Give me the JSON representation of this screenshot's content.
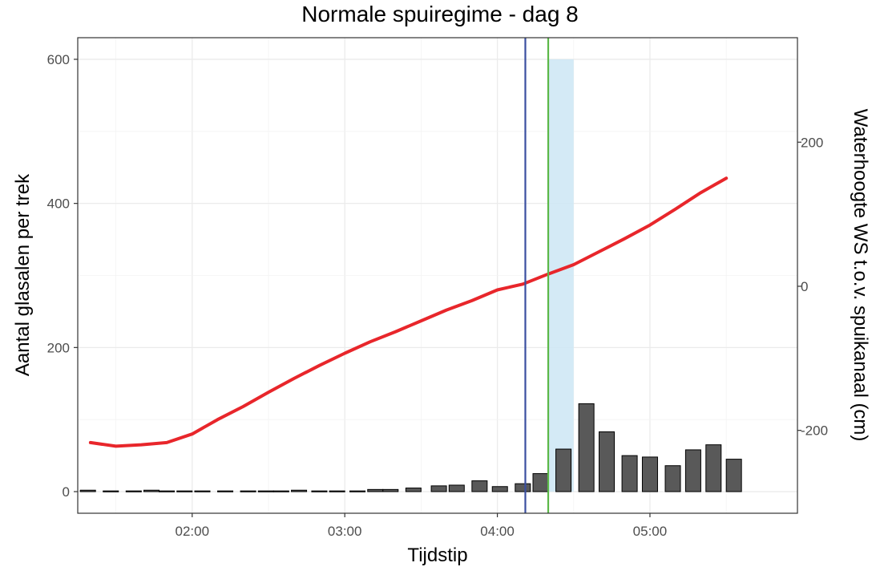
{
  "chart_data": {
    "type": "bar",
    "title": "Normale spuiregime - dag 8",
    "xlabel": "Tijdstip",
    "ylabel": "Aantal glasalen per trek",
    "y2label": "Waterhoogte WS t.o.v. spuikanaal (cm)",
    "xlim": [
      "01:15",
      "05:58"
    ],
    "ylim": [
      -30,
      630
    ],
    "y2lim": [
      -315,
      345
    ],
    "x_ticks": [
      "02:00",
      "03:00",
      "04:00",
      "05:00"
    ],
    "y_ticks": [
      0,
      200,
      400,
      600
    ],
    "y2_ticks": [
      -200,
      0,
      200
    ],
    "grid": true,
    "legend": "none",
    "colors": {
      "bars": "#595959",
      "waterline": "#e8262b",
      "blue_line": "#3a4fa0",
      "green_line": "#5cb848",
      "shade": "#cce6f4"
    },
    "bars": [
      {
        "time": "01:19",
        "value": 2
      },
      {
        "time": "01:28",
        "value": 1
      },
      {
        "time": "01:37",
        "value": 1
      },
      {
        "time": "01:44",
        "value": 2
      },
      {
        "time": "01:50",
        "value": 1
      },
      {
        "time": "01:57",
        "value": 1
      },
      {
        "time": "02:04",
        "value": 1
      },
      {
        "time": "02:13",
        "value": 1
      },
      {
        "time": "02:22",
        "value": 1
      },
      {
        "time": "02:29",
        "value": 1
      },
      {
        "time": "02:35",
        "value": 1
      },
      {
        "time": "02:42",
        "value": 2
      },
      {
        "time": "02:50",
        "value": 1
      },
      {
        "time": "02:57",
        "value": 1
      },
      {
        "time": "03:05",
        "value": 1
      },
      {
        "time": "03:12",
        "value": 3
      },
      {
        "time": "03:18",
        "value": 3
      },
      {
        "time": "03:27",
        "value": 5
      },
      {
        "time": "03:37",
        "value": 8
      },
      {
        "time": "03:44",
        "value": 9
      },
      {
        "time": "03:53",
        "value": 15
      },
      {
        "time": "04:01",
        "value": 7
      },
      {
        "time": "04:10",
        "value": 11
      },
      {
        "time": "04:17",
        "value": 25
      },
      {
        "time": "04:26",
        "value": 59
      },
      {
        "time": "04:35",
        "value": 122
      },
      {
        "time": "04:43",
        "value": 83
      },
      {
        "time": "04:52",
        "value": 50
      },
      {
        "time": "05:00",
        "value": 48
      },
      {
        "time": "05:09",
        "value": 36
      },
      {
        "time": "05:17",
        "value": 58
      },
      {
        "time": "05:25",
        "value": 65
      },
      {
        "time": "05:33",
        "value": 45
      }
    ],
    "waterline": [
      {
        "time": "01:20",
        "value": -217
      },
      {
        "time": "01:30",
        "value": -222
      },
      {
        "time": "01:40",
        "value": -220
      },
      {
        "time": "01:50",
        "value": -217
      },
      {
        "time": "02:00",
        "value": -205
      },
      {
        "time": "02:10",
        "value": -185
      },
      {
        "time": "02:20",
        "value": -167
      },
      {
        "time": "02:30",
        "value": -147
      },
      {
        "time": "02:40",
        "value": -128
      },
      {
        "time": "02:50",
        "value": -110
      },
      {
        "time": "03:00",
        "value": -93
      },
      {
        "time": "03:10",
        "value": -77
      },
      {
        "time": "03:20",
        "value": -63
      },
      {
        "time": "03:30",
        "value": -48
      },
      {
        "time": "03:40",
        "value": -33
      },
      {
        "time": "03:50",
        "value": -20
      },
      {
        "time": "04:00",
        "value": -5
      },
      {
        "time": "04:10",
        "value": 3
      },
      {
        "time": "04:20",
        "value": 17
      },
      {
        "time": "04:30",
        "value": 30
      },
      {
        "time": "04:40",
        "value": 48
      },
      {
        "time": "04:50",
        "value": 66
      },
      {
        "time": "05:00",
        "value": 85
      },
      {
        "time": "05:10",
        "value": 107
      },
      {
        "time": "05:20",
        "value": 130
      },
      {
        "time": "05:30",
        "value": 150
      }
    ],
    "vlines": [
      {
        "name": "blue-line",
        "time": "04:11"
      },
      {
        "name": "green-line",
        "time": "04:20"
      }
    ],
    "shaded_region": {
      "start": "04:20",
      "end": "04:30",
      "top": 600
    }
  }
}
